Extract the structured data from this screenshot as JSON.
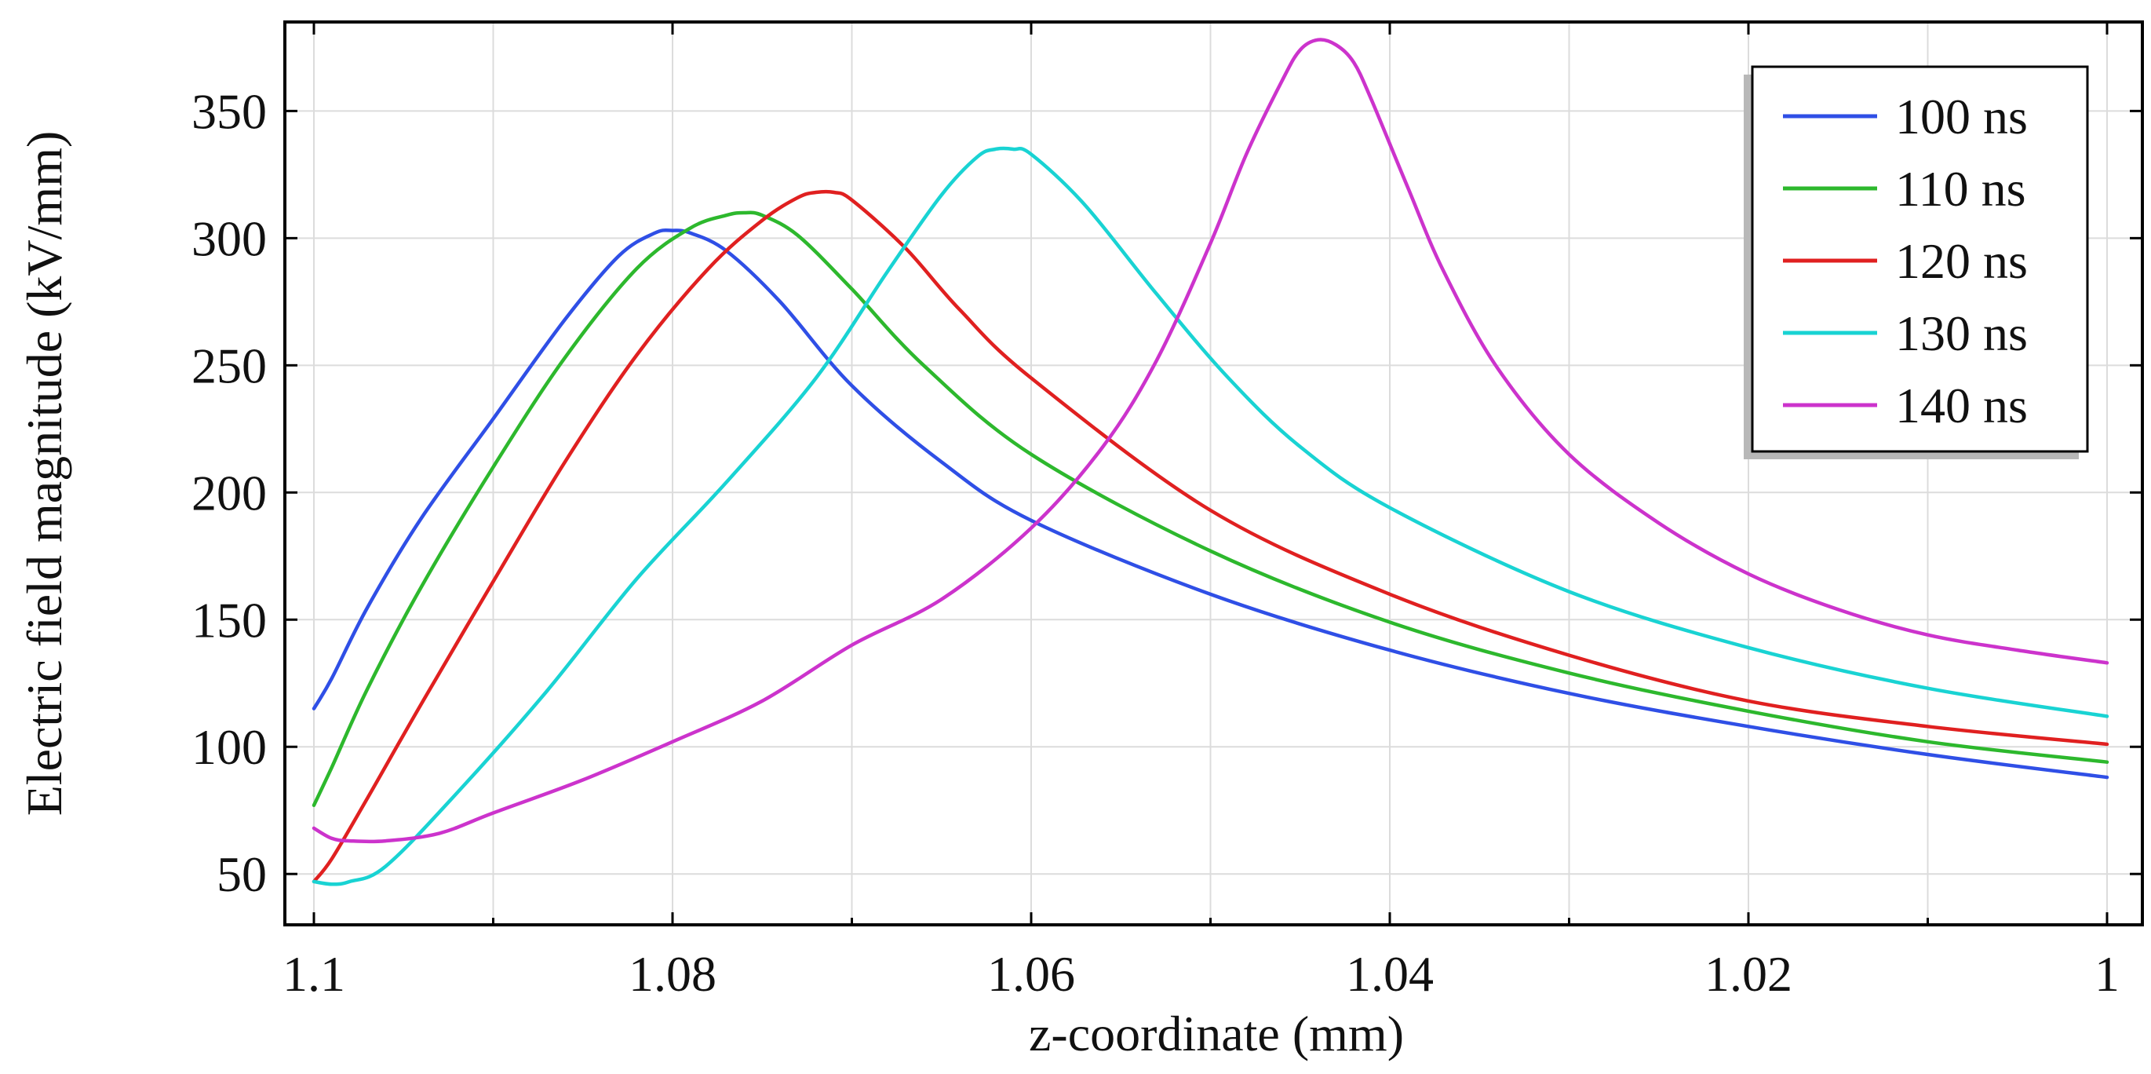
{
  "chart_data": {
    "type": "line",
    "title": "",
    "xlabel": "z-coordinate (mm)",
    "ylabel": "Electric field magnitude (kV/mm)",
    "xlim": [
      1.1,
      1.0
    ],
    "x_reversed": true,
    "ylim": [
      30,
      385
    ],
    "x_ticks": [
      1.1,
      1.08,
      1.06,
      1.04,
      1.02,
      1.0
    ],
    "x_tick_labels": [
      "1.1",
      "1.08",
      "1.06",
      "1.04",
      "1.02",
      "1"
    ],
    "x_minor_grid": [
      1.09,
      1.07,
      1.05,
      1.03,
      1.01
    ],
    "y_ticks": [
      50,
      100,
      150,
      200,
      250,
      300,
      350
    ],
    "y_tick_labels": [
      "50",
      "100",
      "150",
      "200",
      "250",
      "300",
      "350"
    ],
    "grid": true,
    "legend_position": "top-right",
    "series": [
      {
        "name": "100 ns",
        "color": "#2f4fe6",
        "x": [
          1.1,
          1.099,
          1.097,
          1.094,
          1.09,
          1.086,
          1.083,
          1.081,
          1.08,
          1.079,
          1.077,
          1.074,
          1.07,
          1.065,
          1.06,
          1.05,
          1.04,
          1.03,
          1.02,
          1.01,
          1.0
        ],
        "y": [
          115,
          127,
          155,
          190,
          229,
          268,
          293,
          302,
          303,
          302,
          295,
          275,
          242,
          212,
          189,
          160,
          138,
          121,
          108,
          97,
          88
        ]
      },
      {
        "name": "110 ns",
        "color": "#2db82d",
        "x": [
          1.1,
          1.099,
          1.097,
          1.094,
          1.09,
          1.086,
          1.082,
          1.079,
          1.077,
          1.076,
          1.075,
          1.073,
          1.07,
          1.066,
          1.06,
          1.05,
          1.04,
          1.03,
          1.02,
          1.01,
          1.0
        ],
        "y": [
          77,
          92,
          123,
          163,
          210,
          253,
          288,
          304,
          309,
          310,
          309,
          301,
          280,
          250,
          215,
          177,
          149,
          129,
          114,
          102,
          94
        ]
      },
      {
        "name": "120 ns",
        "color": "#e02020",
        "x": [
          1.1,
          1.099,
          1.097,
          1.094,
          1.09,
          1.086,
          1.082,
          1.078,
          1.075,
          1.073,
          1.072,
          1.071,
          1.07,
          1.067,
          1.064,
          1.06,
          1.05,
          1.04,
          1.03,
          1.02,
          1.01,
          1.0
        ],
        "y": [
          47,
          56,
          80,
          117,
          165,
          212,
          254,
          288,
          307,
          316,
          318,
          318,
          315,
          296,
          272,
          245,
          193,
          160,
          136,
          118,
          108,
          101
        ]
      },
      {
        "name": "130 ns",
        "color": "#19d3d3",
        "x": [
          1.1,
          1.099,
          1.098,
          1.096,
          1.092,
          1.087,
          1.082,
          1.077,
          1.072,
          1.068,
          1.065,
          1.063,
          1.062,
          1.061,
          1.06,
          1.057,
          1.053,
          1.049,
          1.045,
          1.04,
          1.03,
          1.02,
          1.01,
          1.0
        ],
        "y": [
          47,
          46,
          47,
          53,
          82,
          122,
          166,
          204,
          245,
          287,
          317,
          332,
          335,
          335,
          333,
          313,
          278,
          245,
          218,
          194,
          161,
          139,
          123,
          112
        ]
      },
      {
        "name": "140 ns",
        "color": "#cc33cc",
        "x": [
          1.1,
          1.099,
          1.098,
          1.096,
          1.093,
          1.09,
          1.085,
          1.08,
          1.075,
          1.07,
          1.065,
          1.06,
          1.056,
          1.053,
          1.05,
          1.048,
          1.046,
          1.045,
          1.044,
          1.043,
          1.042,
          1.041,
          1.039,
          1.037,
          1.034,
          1.03,
          1.025,
          1.02,
          1.015,
          1.01,
          1.005,
          1.0
        ],
        "y": [
          68,
          64,
          63,
          63,
          66,
          74,
          87,
          102,
          118,
          140,
          158,
          186,
          218,
          252,
          298,
          333,
          362,
          374,
          378,
          376,
          369,
          354,
          320,
          287,
          249,
          215,
          188,
          168,
          154,
          144,
          138,
          133
        ]
      }
    ]
  }
}
